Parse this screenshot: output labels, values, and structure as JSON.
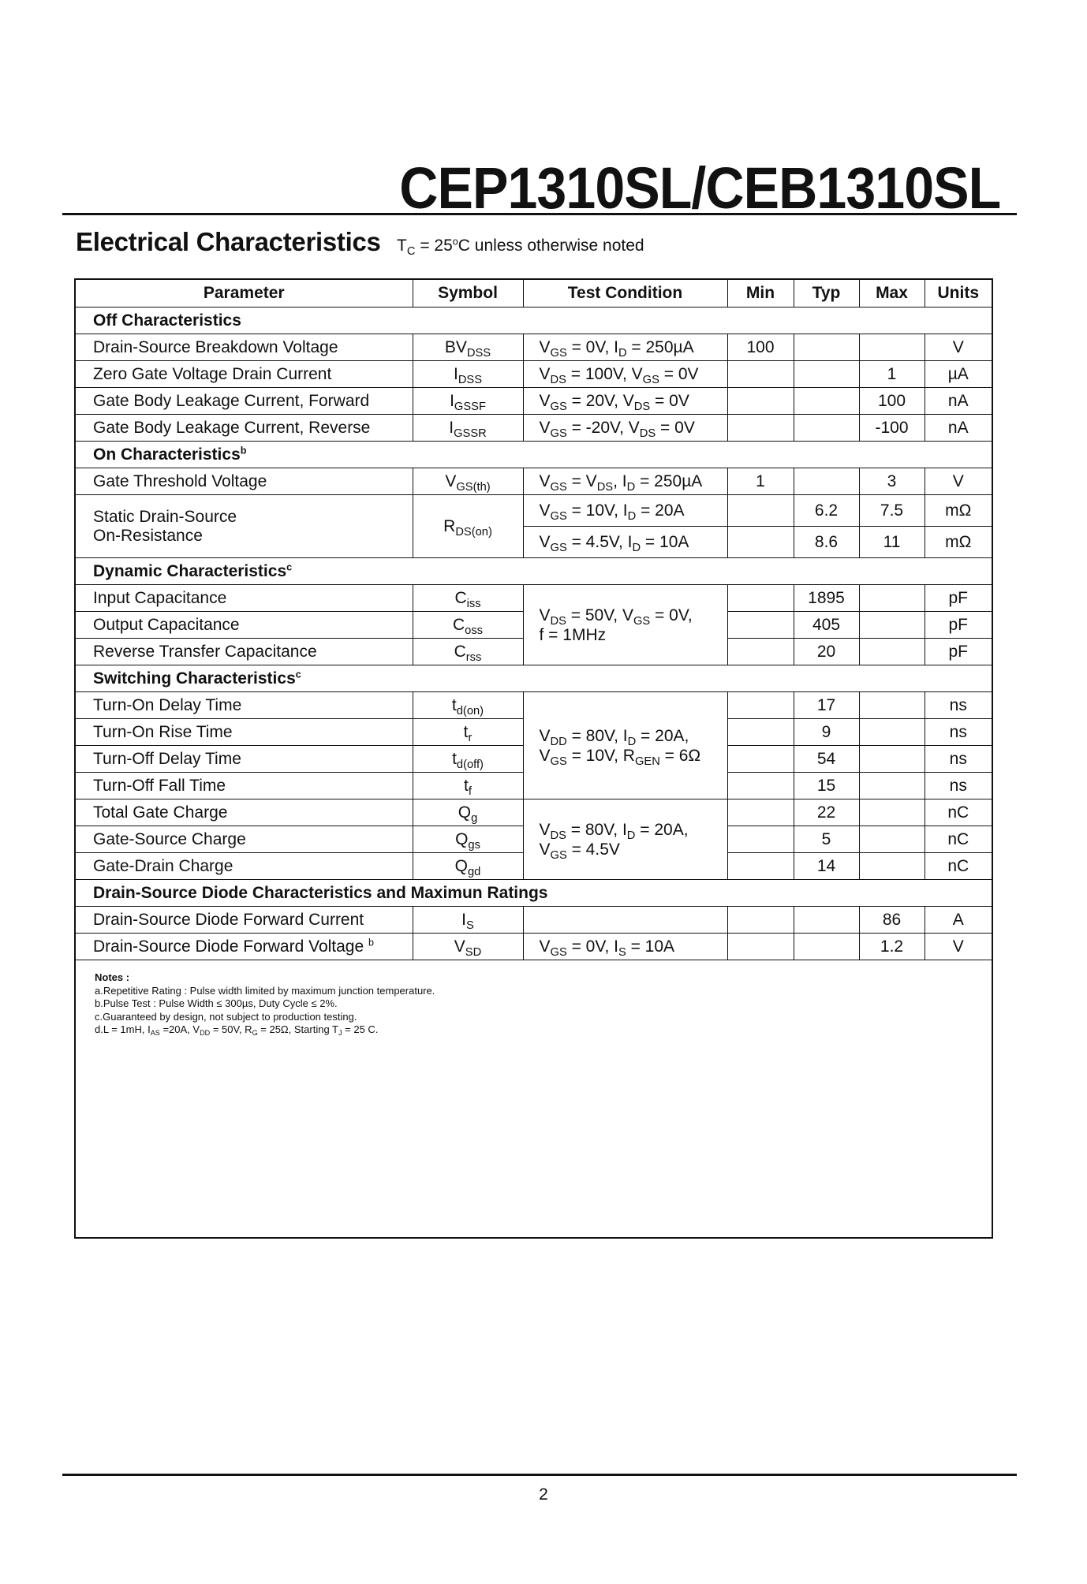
{
  "header": {
    "part_number": "CEP1310SL/CEB1310SL"
  },
  "section": {
    "title": "Electrical Characteristics",
    "condition": "T_{C} = 25^{o}C unless otherwise noted"
  },
  "table": {
    "columns": [
      "Parameter",
      "Symbol",
      "Test Condition",
      "Min",
      "Typ",
      "Max",
      "Units"
    ],
    "rows": [
      {
        "group": "Off Characteristics"
      },
      {
        "param": "Drain-Source Breakdown Voltage",
        "sym": "BV_{DSS}",
        "cond": "V_{GS} = 0V, I_{D} = 250µA",
        "min": "100",
        "typ": "",
        "max": "",
        "unit": "V"
      },
      {
        "param": "Zero Gate Voltage Drain Current",
        "sym": "I_{DSS}",
        "cond": "V_{DS} = 100V, V_{GS} = 0V",
        "min": "",
        "typ": "",
        "max": "1",
        "unit": "µA"
      },
      {
        "param": "Gate Body Leakage Current, Forward",
        "sym": "I_{GSSF}",
        "cond": "V_{GS} =  20V, V_{DS} = 0V",
        "min": "",
        "typ": "",
        "max": "100",
        "unit": "nA"
      },
      {
        "param": "Gate Body Leakage Current, Reverse",
        "sym": "I_{GSSR}",
        "cond": "V_{GS} = -20V, V_{DS} = 0V",
        "min": "",
        "typ": "",
        "max": "-100",
        "unit": "nA"
      },
      {
        "group": "On Characteristics",
        "note": "b"
      },
      {
        "param": "Gate Threshold Voltage",
        "sym": "V_{GS(th)}",
        "cond": "V_{GS} = V_{DS}, I_{D} = 250µA",
        "min": "1",
        "typ": "",
        "max": "3",
        "unit": "V"
      },
      {
        "param": "Static Drain-Source|On-Resistance",
        "sym": "R_{DS(on)}",
        "span": 2,
        "tall": true,
        "cond": "V_{GS} = 10V, I_{D} = 20A",
        "min": "",
        "typ": "6.2",
        "max": "7.5",
        "unit": "mΩ"
      },
      {
        "cont": true,
        "tall": true,
        "cond": "V_{GS} = 4.5V, I_{D} = 10A",
        "min": "",
        "typ": "8.6",
        "max": "11",
        "unit": "mΩ"
      },
      {
        "group": "Dynamic Characteristics",
        "note": "c"
      },
      {
        "param": "Input Capacitance",
        "sym": "C_{iss}",
        "cond": "V_{DS} = 50V, V_{GS} = 0V,|f = 1MHz",
        "cspan": 3,
        "min": "",
        "typ": "1895",
        "max": "",
        "unit": "pF"
      },
      {
        "param": "Output Capacitance",
        "sym": "C_{oss}",
        "ccont": true,
        "min": "",
        "typ": "405",
        "max": "",
        "unit": "pF"
      },
      {
        "param": "Reverse Transfer Capacitance",
        "sym": "C_{rss}",
        "ccont": true,
        "min": "",
        "typ": "20",
        "max": "",
        "unit": "pF"
      },
      {
        "group": "Switching Characteristics",
        "note": "c"
      },
      {
        "param": "Turn-On Delay Time",
        "sym": "t_{d(on)}",
        "cond": "V_{DD} = 80V, I_{D} = 20A,|V_{GS} = 10V, R_{GEN} = 6Ω",
        "cspan": 4,
        "min": "",
        "typ": "17",
        "max": "",
        "unit": "ns"
      },
      {
        "param": "Turn-On Rise Time",
        "sym": "t_{r}",
        "ccont": true,
        "min": "",
        "typ": "9",
        "max": "",
        "unit": "ns"
      },
      {
        "param": "Turn-Off Delay Time",
        "sym": "t_{d(off)}",
        "ccont": true,
        "min": "",
        "typ": "54",
        "max": "",
        "unit": "ns"
      },
      {
        "param": "Turn-Off Fall Time",
        "sym": "t_{f}",
        "ccont": true,
        "min": "",
        "typ": "15",
        "max": "",
        "unit": "ns"
      },
      {
        "param": "Total Gate Charge",
        "sym": "Q_{g}",
        "cond": "V_{DS} = 80V, I_{D} = 20A,|V_{GS} = 4.5V",
        "cspan": 3,
        "min": "",
        "typ": "22",
        "max": "",
        "unit": "nC"
      },
      {
        "param": "Gate-Source Charge",
        "sym": "Q_{gs}",
        "ccont": true,
        "min": "",
        "typ": "5",
        "max": "",
        "unit": "nC"
      },
      {
        "param": "Gate-Drain Charge",
        "sym": "Q_{gd}",
        "ccont": true,
        "min": "",
        "typ": "14",
        "max": "",
        "unit": "nC"
      },
      {
        "group": "Drain-Source Diode Characteristics and Maximun Ratings"
      },
      {
        "param": "Drain-Source Diode Forward Current",
        "sym": "I_{S}",
        "cond": "",
        "min": "",
        "typ": "",
        "max": "86",
        "unit": "A"
      },
      {
        "param": "Drain-Source Diode Forward Voltage",
        "pnote": "b",
        "sym": "V_{SD}",
        "cond": "V_{GS} = 0V, I_{S} = 10A",
        "min": "",
        "typ": "",
        "max": "1.2",
        "unit": "V"
      }
    ]
  },
  "notes": {
    "title": "Notes :",
    "items": [
      "a.Repetitive Rating : Pulse width limited by maximum junction temperature.",
      "b.Pulse Test : Pulse Width ≤ 300µs, Duty Cycle ≤ 2%.",
      "c.Guaranteed by design, not subject to production testing.",
      "d.L = 1mH, I_{AS} =20A, V_{DD} = 50V, R_{G} = 25Ω, Starting T_{J} = 25 C."
    ]
  },
  "footer": {
    "page_number": "2"
  }
}
